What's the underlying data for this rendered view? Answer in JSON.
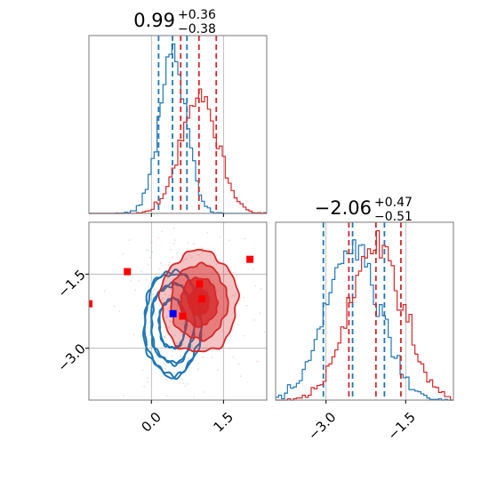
{
  "colors": {
    "blue": "#1f77b4",
    "red": "#d62728",
    "grid": "#b0b0b0",
    "marker_red": "#ff0000",
    "marker_blue": "#0000ff"
  },
  "chart_data": [
    {
      "type": "histogram",
      "panel": "top-left",
      "parameter": "x",
      "title_value": "0.99",
      "title_plus": "+0.36",
      "title_minus": "−0.38",
      "xlim": [
        -1.3,
        2.4
      ],
      "x_gridlines": [
        0.0,
        1.5
      ],
      "series": [
        {
          "name": "",
          "color": "blue",
          "center": 0.44,
          "sigma": 0.28,
          "quantiles": [
            0.15,
            0.44,
            0.74
          ]
        },
        {
          "name": "",
          "color": "red",
          "center": 0.99,
          "sigma": 0.38,
          "quantiles": [
            0.61,
            0.99,
            1.35
          ]
        }
      ]
    },
    {
      "type": "histogram",
      "panel": "bottom-right",
      "parameter": "y",
      "title_value": "−2.06",
      "title_plus": "+0.47",
      "title_minus": "−0.51",
      "xlim": [
        -3.95,
        -0.6
      ],
      "xticks": [
        -3.0,
        -1.5
      ],
      "xtick_labels": [
        "−3.0",
        "−1.5"
      ],
      "x_gridlines": [
        -3.0,
        -1.5
      ],
      "series": [
        {
          "name": "",
          "color": "blue",
          "center": -2.5,
          "sigma": 0.5,
          "quantiles": [
            -3.05,
            -2.5,
            -1.9
          ]
        },
        {
          "name": "",
          "color": "red",
          "center": -2.06,
          "sigma": 0.49,
          "quantiles": [
            -2.57,
            -2.06,
            -1.59
          ]
        }
      ]
    },
    {
      "type": "contour",
      "panel": "bottom-left",
      "xlim": [
        -1.3,
        2.4
      ],
      "ylim": [
        -4.05,
        -0.45
      ],
      "xticks": [
        0.0,
        1.5
      ],
      "xtick_labels": [
        "0.0",
        "1.5"
      ],
      "yticks": [
        -1.5,
        -3.0
      ],
      "ytick_labels": [
        "−1.5",
        "−3.0"
      ],
      "grid_x": [
        0.0,
        1.5
      ],
      "grid_y": [
        -1.5,
        -3.0
      ],
      "series": [
        {
          "name": "",
          "color": "blue",
          "center": [
            0.44,
            -2.5
          ],
          "sigma": [
            0.28,
            0.5
          ],
          "filled": false
        },
        {
          "name": "",
          "color": "red",
          "center": [
            0.99,
            -2.06
          ],
          "sigma": [
            0.38,
            0.49
          ],
          "filled": true
        }
      ],
      "red_markers": [
        [
          -1.3,
          -2.1
        ],
        [
          -0.5,
          -1.45
        ],
        [
          0.65,
          -2.35
        ],
        [
          1.0,
          -1.7
        ],
        [
          1.05,
          -2.0
        ],
        [
          2.05,
          -1.2
        ]
      ],
      "blue_markers": [
        [
          0.45,
          -2.3
        ]
      ]
    }
  ]
}
